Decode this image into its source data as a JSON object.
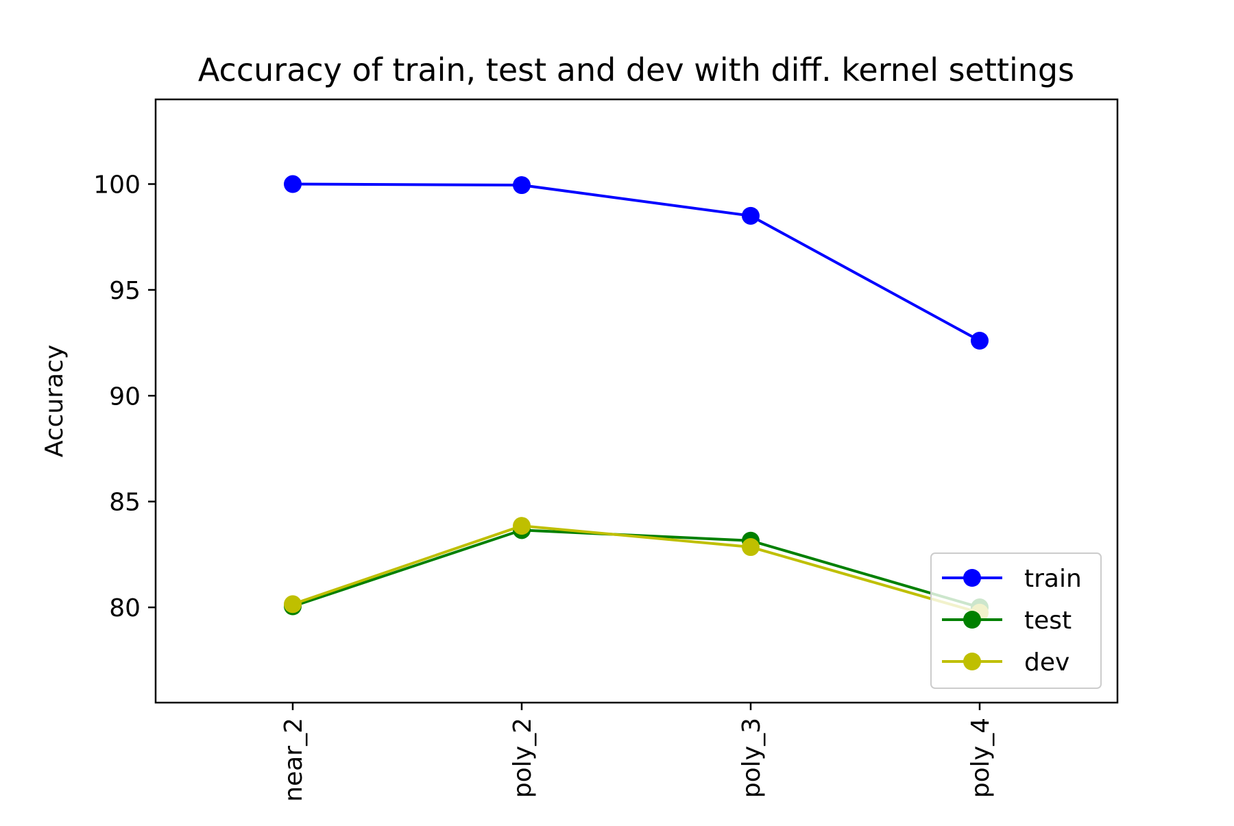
{
  "chart_data": {
    "type": "line",
    "title": "Accuracy of train, test and dev with diff. kernel settings",
    "xlabel": "",
    "ylabel": "Accuracy",
    "categories": [
      "near_2",
      "poly_2",
      "poly_3",
      "poly_4"
    ],
    "ylim": [
      75.5,
      104
    ],
    "yticks": [
      80,
      85,
      90,
      95,
      100
    ],
    "grid": false,
    "legend_position": "bottom-right",
    "series": [
      {
        "name": "train",
        "color": "#0000ff",
        "values": [
          100.0,
          99.95,
          98.5,
          92.6
        ]
      },
      {
        "name": "test",
        "color": "#008000",
        "values": [
          80.05,
          83.65,
          83.15,
          80.0
        ]
      },
      {
        "name": "dev",
        "color": "#bfbf00",
        "values": [
          80.15,
          83.85,
          82.85,
          79.75
        ]
      }
    ]
  }
}
